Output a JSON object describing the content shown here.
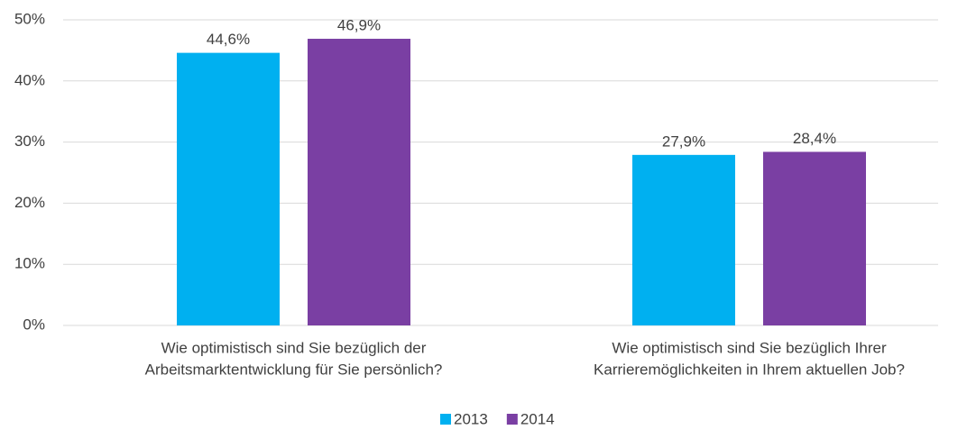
{
  "chart_data": {
    "type": "bar",
    "categories": [
      [
        "Wie optimistisch sind Sie bezüglich der",
        "Arbeitsmarktentwicklung für Sie persönlich?"
      ],
      [
        "Wie optimistisch sind Sie bezüglich Ihrer",
        "Karrieremöglichkeiten in Ihrem aktuellen Job?"
      ]
    ],
    "series": [
      {
        "name": "2013",
        "color": "#00b0f0",
        "values": [
          44.6,
          27.9
        ],
        "value_labels": [
          "44,6%",
          "27,9%"
        ]
      },
      {
        "name": "2014",
        "color": "#7a3fa3",
        "values": [
          46.9,
          28.4
        ],
        "value_labels": [
          "46,9%",
          "28,4%"
        ]
      }
    ],
    "ylim": [
      0,
      50
    ],
    "yticks": [
      {
        "value": 0,
        "label": "0%"
      },
      {
        "value": 10,
        "label": "10%"
      },
      {
        "value": 20,
        "label": "20%"
      },
      {
        "value": 30,
        "label": "30%"
      },
      {
        "value": 40,
        "label": "40%"
      },
      {
        "value": 50,
        "label": "50%"
      }
    ],
    "grid": true,
    "legend": "bottom"
  }
}
